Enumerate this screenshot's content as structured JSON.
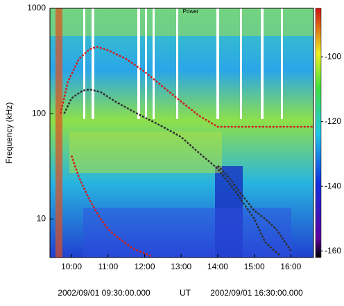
{
  "chart_data": {
    "type": "spectrogram",
    "title": "Power",
    "ylabel": "Frequency (kHz)",
    "xlabel": "UT",
    "x_start_label": "2002/09/01 09:30:00.000",
    "x_end_label": "2002/09/01 16:30:00.000",
    "ylog": true,
    "ylim": [
      4.3,
      1000
    ],
    "yticks": [
      10,
      100,
      1000
    ],
    "xlim": [
      9.41,
      16.62
    ],
    "xticks": [
      {
        "value": 10,
        "label": "10:00"
      },
      {
        "value": 11,
        "label": "11:00"
      },
      {
        "value": 12,
        "label": "12:00"
      },
      {
        "value": 13,
        "label": "13:00"
      },
      {
        "value": 14,
        "label": "14:00"
      },
      {
        "value": 15,
        "label": "15:00"
      },
      {
        "value": 16,
        "label": "16:00"
      }
    ],
    "colorbar_lim": [
      -162,
      -85
    ],
    "colorbar_ticks": [
      -100,
      -120,
      -140,
      -160
    ],
    "series": [
      {
        "color": "#d02020",
        "x": [
          9.7,
          9.9,
          10.2,
          10.5,
          10.7,
          11.0,
          11.5,
          12.0,
          12.5,
          13.0,
          13.5,
          14.0,
          14.5,
          15.0,
          15.5,
          16.0,
          16.6
        ],
        "values": [
          100,
          200,
          330,
          410,
          430,
          400,
          330,
          250,
          180,
          130,
          95,
          75,
          75,
          75,
          75,
          75,
          75
        ]
      },
      {
        "color": "#303030",
        "x": [
          9.8,
          10.0,
          10.3,
          10.5,
          10.8,
          11.2,
          11.8,
          12.5,
          13.0,
          13.5,
          14.0,
          14.5,
          15.0,
          15.3,
          15.7
        ],
        "values": [
          100,
          140,
          165,
          170,
          160,
          130,
          100,
          75,
          60,
          42,
          30,
          18,
          10,
          6,
          4.5
        ]
      },
      {
        "color": "#d02020",
        "x": [
          10.0,
          10.2,
          10.5,
          10.8,
          11.0,
          11.3,
          11.7,
          12.2
        ],
        "values": [
          40,
          25,
          15,
          10,
          8,
          6.5,
          5.2,
          4.4
        ]
      },
      {
        "color": "#303030",
        "x": [
          14.0,
          14.3,
          14.6,
          15.0,
          15.3,
          15.6,
          16.0
        ],
        "values": [
          32,
          25,
          18,
          12,
          10,
          8,
          5
        ]
      }
    ]
  }
}
